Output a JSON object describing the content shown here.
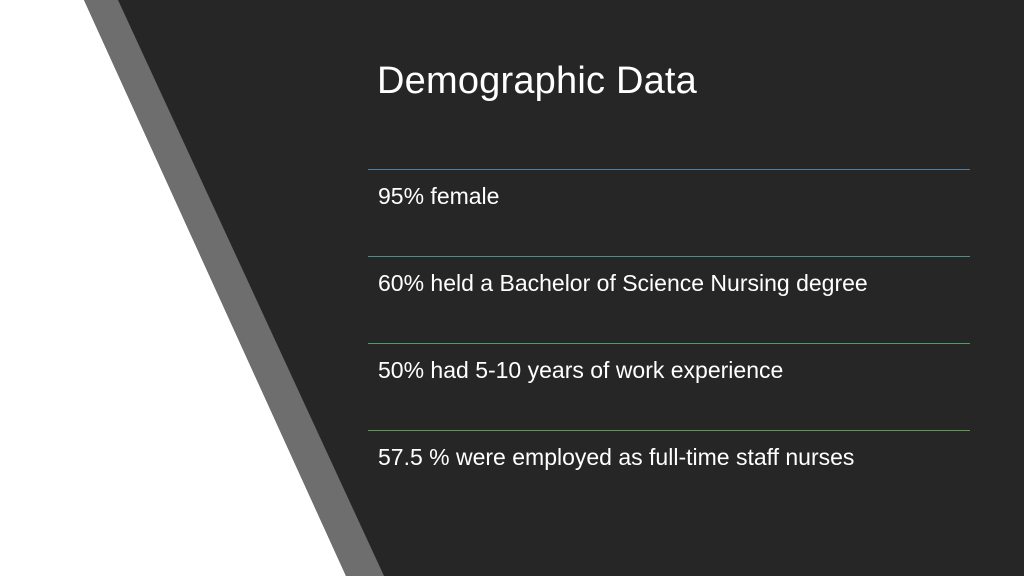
{
  "slide": {
    "title": "Demographic Data",
    "items": [
      {
        "text": "95% female",
        "rule_color": "#4f7fa0"
      },
      {
        "text": "60% held a Bachelor of Science Nursing degree",
        "rule_color": "#4f8f8a"
      },
      {
        "text": "50% had 5-10 years of work experience",
        "rule_color": "#4f9a6a"
      },
      {
        "text": "57.5 % were employed as full-time staff nurses",
        "rule_color": "#5f9a4a"
      }
    ]
  },
  "colors": {
    "background": "#262626",
    "white_panel": "#ffffff",
    "gray_stripe": "#6e6e6e",
    "text": "#ffffff"
  }
}
